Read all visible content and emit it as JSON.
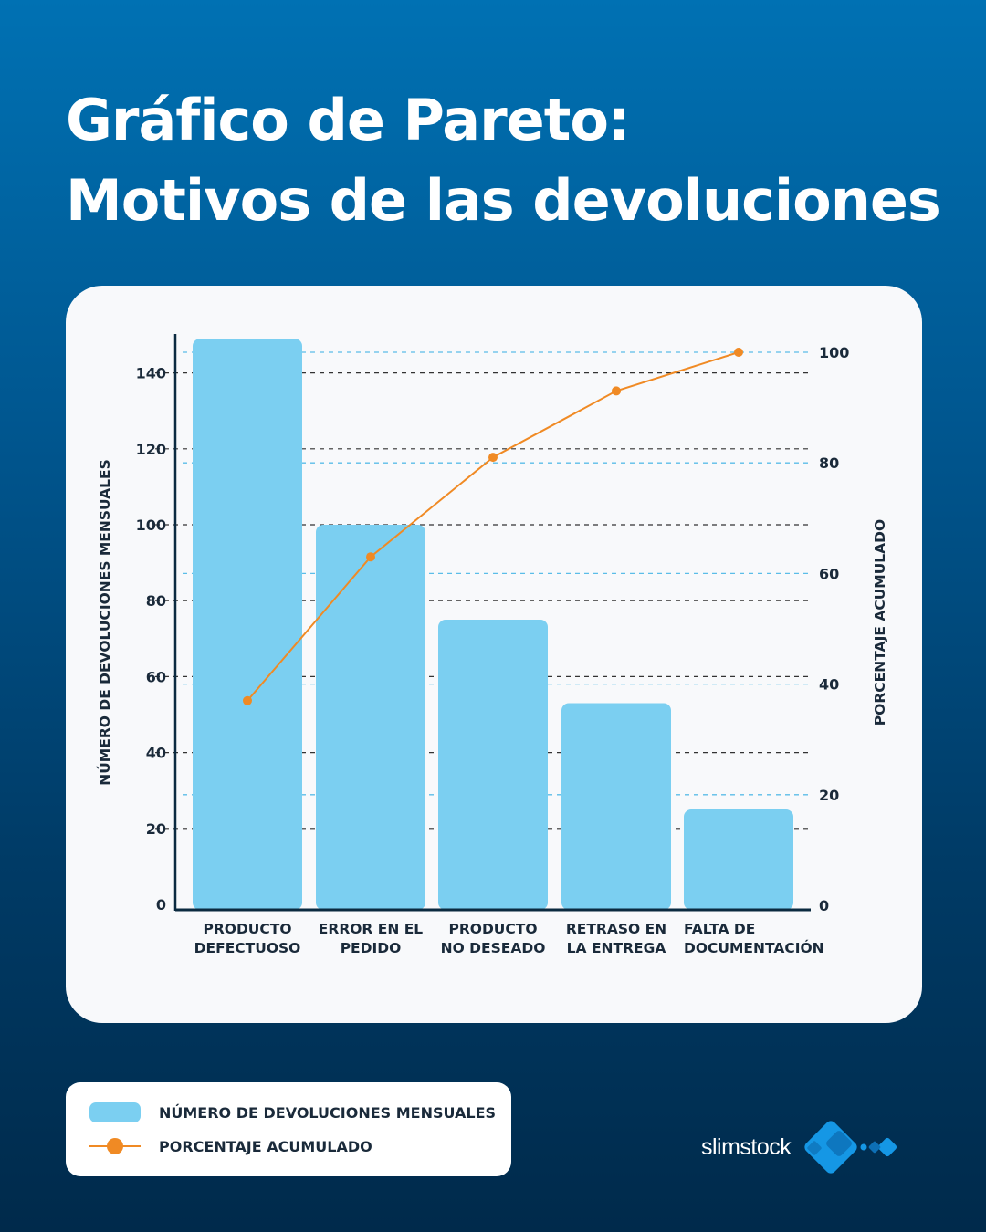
{
  "header": {
    "title_line1": "Gráfico de Pareto:",
    "title_line2": "Motivos de las devoluciones"
  },
  "chart_data": {
    "type": "bar+line",
    "categories": [
      [
        "PRODUCTO",
        "DEFECTUOSO"
      ],
      [
        "ERROR EN EL",
        "PEDIDO"
      ],
      [
        "PRODUCTO",
        "NO DESEADO"
      ],
      [
        "RETRASO EN",
        "LA ENTREGA"
      ],
      [
        "FALTA DE",
        "DOCUMENTACIÓN"
      ]
    ],
    "series": [
      {
        "name": "NÚMERO DE DEVOLUCIONES MENSUALES",
        "type": "bar",
        "axis": "left",
        "values": [
          149,
          100,
          75,
          53,
          25
        ],
        "color": "#7bcff1"
      },
      {
        "name": "PORCENTAJE ACUMULADO",
        "type": "line",
        "axis": "right",
        "values": [
          37,
          63,
          81,
          93,
          100
        ],
        "color": "#f08a24"
      }
    ],
    "ylabel": "NÚMERO DE DEVOLUCIONES MENSUALES",
    "y2label": "PORCENTAJE ACUMULADO",
    "yticks": [
      0,
      20,
      40,
      60,
      80,
      100,
      120,
      140
    ],
    "y2ticks": [
      0,
      20,
      40,
      60,
      80,
      100
    ],
    "ylim": [
      0,
      150
    ],
    "y2lim": [
      0,
      103
    ],
    "grid": true,
    "legend_position": "bottom-left"
  },
  "legend": {
    "items": [
      "NÚMERO DE DEVOLUCIONES MENSUALES",
      "PORCENTAJE ACUMULADO"
    ]
  },
  "brand": {
    "name": "slimstock"
  }
}
